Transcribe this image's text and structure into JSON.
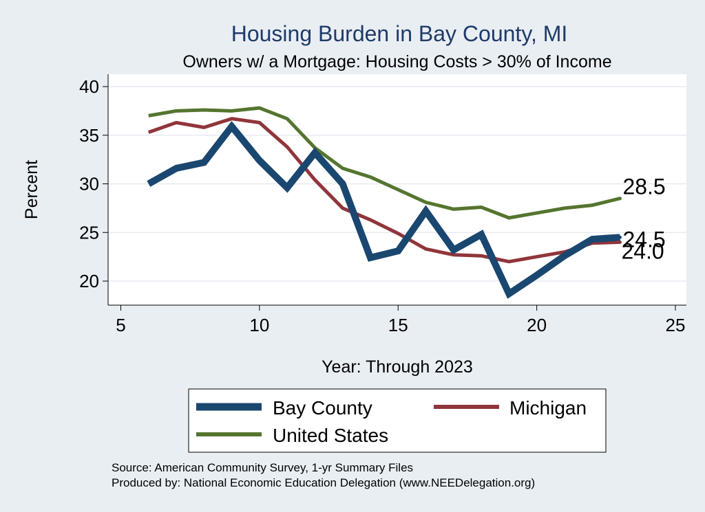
{
  "chart_data": {
    "type": "line",
    "title": "Housing Burden in Bay County, MI",
    "subtitle": "Owners w/ a Mortgage: Housing Costs > 30% of Income",
    "xlabel": "Year: Through 2023",
    "ylabel": "Percent",
    "xlim": [
      5,
      25
    ],
    "ylim": [
      17.5,
      40.5
    ],
    "xticks": [
      5,
      10,
      15,
      20,
      25
    ],
    "yticks": [
      20,
      25,
      30,
      35,
      40
    ],
    "grid": true,
    "legend_position": "bottom",
    "series": [
      {
        "name": "Bay County",
        "color": "#1a476f",
        "x": [
          6,
          7,
          8,
          9,
          10,
          11,
          12,
          13,
          14,
          15,
          16,
          17,
          18,
          19,
          20,
          21,
          22,
          23
        ],
        "values": [
          30.0,
          31.6,
          32.2,
          35.9,
          32.4,
          29.6,
          33.2,
          30.0,
          22.4,
          23.1,
          27.2,
          23.2,
          24.8,
          18.7,
          20.6,
          22.6,
          24.3,
          24.5
        ],
        "end_label": "24.5"
      },
      {
        "name": "Michigan",
        "color": "#90353b",
        "x": [
          6,
          7,
          8,
          9,
          10,
          11,
          12,
          13,
          14,
          15,
          16,
          17,
          18,
          19,
          20,
          21,
          22,
          23
        ],
        "values": [
          35.3,
          36.3,
          35.8,
          36.7,
          36.3,
          33.8,
          30.4,
          27.5,
          26.3,
          24.9,
          23.3,
          22.7,
          22.6,
          22.0,
          22.5,
          23.0,
          23.9,
          24.0
        ],
        "end_label": "24.0"
      },
      {
        "name": "United States",
        "color": "#55752f",
        "x": [
          6,
          7,
          8,
          9,
          10,
          11,
          12,
          13,
          14,
          15,
          16,
          17,
          18,
          19,
          20,
          21,
          22,
          23
        ],
        "values": [
          37.0,
          37.5,
          37.6,
          37.5,
          37.8,
          36.7,
          33.7,
          31.6,
          30.7,
          29.4,
          28.1,
          27.4,
          27.6,
          26.5,
          27.0,
          27.5,
          27.8,
          28.5
        ],
        "end_label": "28.5"
      }
    ],
    "notes": [
      "Source: American Community Survey, 1-yr Summary Files",
      "Produced by: National Economic Education Delegation (www.NEEDelegation.org)"
    ]
  }
}
